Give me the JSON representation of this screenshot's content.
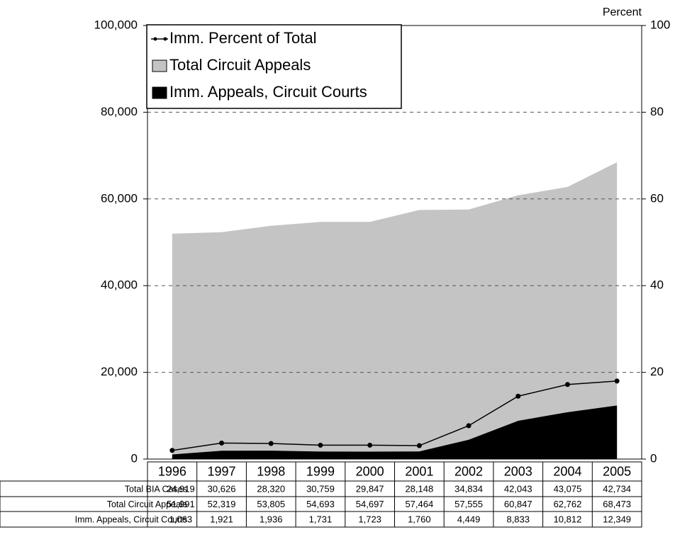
{
  "chart_data": {
    "type": "area",
    "categories": [
      "1996",
      "1997",
      "1998",
      "1999",
      "2000",
      "2001",
      "2002",
      "2003",
      "2004",
      "2005"
    ],
    "series": [
      {
        "name": "Total Circuit Appeals",
        "color": "#c4c4c4",
        "values": [
          51991,
          52319,
          53805,
          54693,
          54697,
          57464,
          57555,
          60847,
          62762,
          68473
        ],
        "value_labels": [
          "51,991",
          "52,319",
          "53,805",
          "54,693",
          "54,697",
          "57,464",
          "57,555",
          "60,847",
          "62,762",
          "68,473"
        ]
      },
      {
        "name": "Imm. Appeals, Circuit Courts",
        "color": "#000000",
        "values": [
          1063,
          1921,
          1936,
          1731,
          1723,
          1760,
          4449,
          8833,
          10812,
          12349
        ],
        "value_labels": [
          "1,063",
          "1,921",
          "1,936",
          "1,731",
          "1,723",
          "1,760",
          "4,449",
          "8,833",
          "10,812",
          "12,349"
        ]
      },
      {
        "name": "Imm. Percent of Total",
        "color": "#000000",
        "axis": "y2",
        "type": "line",
        "values": [
          2.0,
          3.7,
          3.6,
          3.2,
          3.2,
          3.1,
          7.7,
          14.5,
          17.2,
          18.0
        ]
      }
    ],
    "data_table": [
      {
        "name": "Total BIA Cases",
        "values": [
          24919,
          30626,
          28320,
          30759,
          29847,
          28148,
          34834,
          42043,
          43075,
          42734
        ],
        "value_labels": [
          "24,919",
          "30,626",
          "28,320",
          "30,759",
          "29,847",
          "28,148",
          "34,834",
          "42,043",
          "43,075",
          "42,734"
        ]
      }
    ],
    "ylim": [
      0,
      100000
    ],
    "yticks": [
      0,
      {
        "value": 20000,
        "label": "20,000"
      },
      {
        "value": 40000,
        "label": "40,000"
      },
      {
        "value": 60000,
        "label": "60,000"
      },
      {
        "value": 80000,
        "label": "80,000"
      },
      {
        "value": 100000,
        "label": "100,000"
      }
    ],
    "y2label": "Percent",
    "y2lim": [
      0,
      100
    ],
    "y2ticks": [
      0,
      20,
      40,
      60,
      80,
      100
    ],
    "grid": true,
    "legend": "upper left"
  }
}
